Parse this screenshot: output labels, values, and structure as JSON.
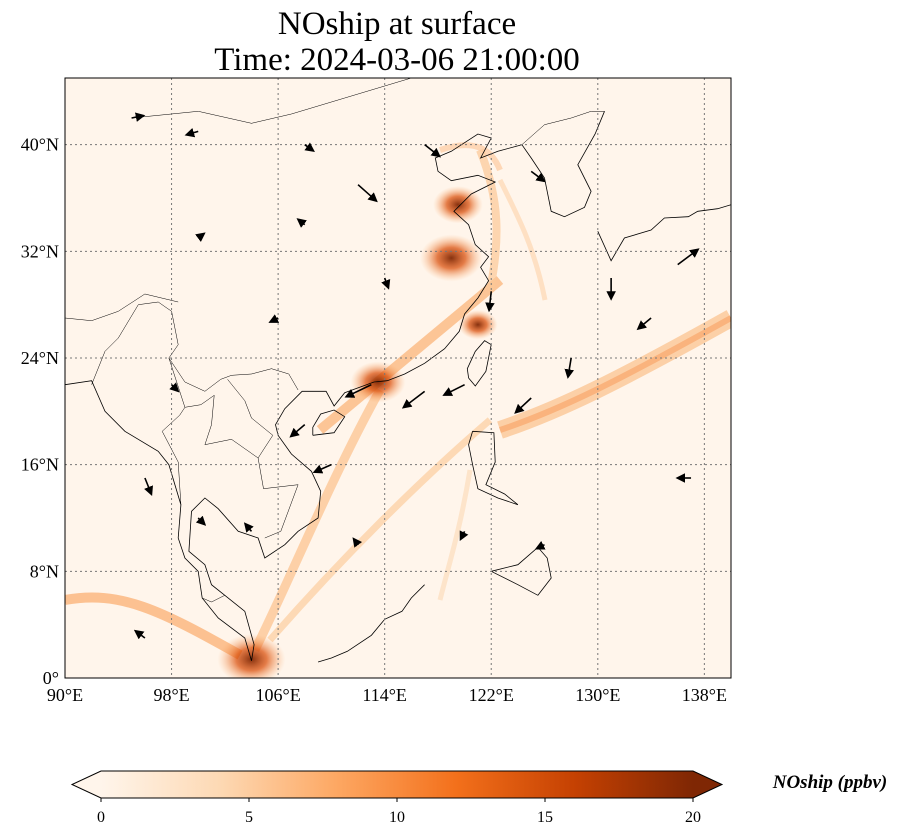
{
  "title": {
    "line1": "NOship at surface",
    "line2": "Time: 2024-03-06 21:00:00"
  },
  "map": {
    "extent": {
      "lon": [
        90,
        140
      ],
      "lat": [
        0,
        45
      ]
    },
    "lon_ticks": [
      {
        "value": 90,
        "label": "90°E"
      },
      {
        "value": 98,
        "label": "98°E"
      },
      {
        "value": 106,
        "label": "106°E"
      },
      {
        "value": 114,
        "label": "114°E"
      },
      {
        "value": 122,
        "label": "122°E"
      },
      {
        "value": 130,
        "label": "130°E"
      },
      {
        "value": 138,
        "label": "138°E"
      }
    ],
    "lat_ticks": [
      {
        "value": 0,
        "label": "0°"
      },
      {
        "value": 8,
        "label": "8°N"
      },
      {
        "value": 16,
        "label": "16°N"
      },
      {
        "value": 24,
        "label": "24°N"
      },
      {
        "value": 32,
        "label": "32°N"
      },
      {
        "value": 40,
        "label": "40°N"
      }
    ],
    "gridlines": true,
    "background_color": "#fff5eb",
    "hotspots": [
      {
        "name": "yangtze-delta",
        "lon": 119,
        "lat": 31.5,
        "level": 18
      },
      {
        "name": "pearl-river-delta",
        "lon": 113.5,
        "lat": 22.2,
        "level": 15
      },
      {
        "name": "strait-of-singapore",
        "lon": 104,
        "lat": 1.4,
        "level": 20
      },
      {
        "name": "shandong",
        "lon": 119.5,
        "lat": 35.5,
        "level": 13
      },
      {
        "name": "taiwan-strait",
        "lon": 121,
        "lat": 26.5,
        "level": 9
      }
    ],
    "wind_vectors": [
      {
        "lon": 95,
        "lat": 42,
        "u": 1,
        "v": 0.2
      },
      {
        "lon": 100,
        "lat": 41,
        "u": -1,
        "v": -0.3
      },
      {
        "lon": 108,
        "lat": 40,
        "u": 0.7,
        "v": -0.5
      },
      {
        "lon": 112,
        "lat": 37,
        "u": 1.8,
        "v": -1.6
      },
      {
        "lon": 117,
        "lat": 40,
        "u": 1.4,
        "v": -1.1
      },
      {
        "lon": 125,
        "lat": 38,
        "u": 1.2,
        "v": -0.9
      },
      {
        "lon": 131,
        "lat": 30,
        "u": 0,
        "v": -2
      },
      {
        "lon": 134,
        "lat": 27,
        "u": -1.2,
        "v": -1
      },
      {
        "lon": 136,
        "lat": 31,
        "u": 2,
        "v": 1.5
      },
      {
        "lon": 128,
        "lat": 24,
        "u": -0.3,
        "v": -1.8
      },
      {
        "lon": 125,
        "lat": 21,
        "u": -1.5,
        "v": -1.4
      },
      {
        "lon": 120,
        "lat": 22,
        "u": -2,
        "v": -1
      },
      {
        "lon": 117,
        "lat": 21.5,
        "u": -2.1,
        "v": -1.6
      },
      {
        "lon": 113,
        "lat": 22,
        "u": -2.5,
        "v": -1.2
      },
      {
        "lon": 108,
        "lat": 19,
        "u": -1.3,
        "v": -1.1
      },
      {
        "lon": 110,
        "lat": 16,
        "u": -1.6,
        "v": -0.7
      },
      {
        "lon": 96,
        "lat": 15,
        "u": 0.6,
        "v": -1.5
      },
      {
        "lon": 100,
        "lat": 12,
        "u": 0.5,
        "v": -0.5
      },
      {
        "lon": 104,
        "lat": 11,
        "u": -0.5,
        "v": 0.6
      },
      {
        "lon": 112,
        "lat": 10,
        "u": -0.3,
        "v": 0.4
      },
      {
        "lon": 120,
        "lat": 11,
        "u": -0.3,
        "v": -0.6
      },
      {
        "lon": 126,
        "lat": 10,
        "u": -0.6,
        "v": -0.3
      },
      {
        "lon": 137,
        "lat": 15,
        "u": -1.2,
        "v": 0
      },
      {
        "lon": 96,
        "lat": 3,
        "u": -0.8,
        "v": 0.6
      },
      {
        "lon": 106,
        "lat": 27,
        "u": -0.6,
        "v": -0.3
      },
      {
        "lon": 114,
        "lat": 30,
        "u": 0.3,
        "v": -0.8
      },
      {
        "lon": 100,
        "lat": 33,
        "u": 0.4,
        "v": 0.3
      },
      {
        "lon": 122,
        "lat": 29,
        "u": -0.2,
        "v": -1.8
      },
      {
        "lon": 98,
        "lat": 22,
        "u": 0.5,
        "v": -0.5
      },
      {
        "lon": 108,
        "lat": 34,
        "u": -0.5,
        "v": 0.4
      }
    ],
    "coastlines": [
      [
        [
          104,
          1.3
        ],
        [
          103.5,
          3
        ],
        [
          101.5,
          4.5
        ],
        [
          100.3,
          6
        ],
        [
          100,
          8
        ],
        [
          99,
          9
        ],
        [
          98.5,
          10.5
        ],
        [
          98.7,
          13
        ],
        [
          97.8,
          16
        ],
        [
          97,
          17
        ],
        [
          94.5,
          18.5
        ],
        [
          93,
          20
        ],
        [
          92,
          22.3
        ],
        [
          90,
          22
        ]
      ],
      [
        [
          104,
          1.3
        ],
        [
          104.2,
          2.5
        ],
        [
          103.5,
          5
        ],
        [
          102,
          6.2
        ],
        [
          101,
          7
        ],
        [
          100.5,
          8.5
        ],
        [
          99.3,
          9.5
        ],
        [
          99.5,
          12.5
        ],
        [
          100.5,
          13.5
        ],
        [
          101.5,
          12.7
        ],
        [
          103,
          11
        ],
        [
          104.5,
          10.5
        ],
        [
          105,
          9
        ],
        [
          106.5,
          10
        ],
        [
          107.5,
          11
        ],
        [
          109,
          12
        ],
        [
          109.2,
          14
        ],
        [
          108.5,
          15.5
        ],
        [
          107,
          16.8
        ],
        [
          106,
          18.2
        ],
        [
          105.8,
          19
        ],
        [
          106.5,
          20.2
        ],
        [
          107.8,
          21.5
        ],
        [
          109.6,
          21.5
        ],
        [
          110.2,
          20.4
        ],
        [
          111,
          21.4
        ],
        [
          113.2,
          22.2
        ],
        [
          114.2,
          22.3
        ],
        [
          115.5,
          22.8
        ],
        [
          117,
          23.6
        ],
        [
          118.5,
          24.7
        ],
        [
          119.6,
          26
        ],
        [
          120,
          27.3
        ],
        [
          121,
          28.5
        ],
        [
          121.8,
          29.8
        ],
        [
          121.2,
          30.8
        ],
        [
          121.8,
          31.6
        ],
        [
          120.8,
          32.5
        ],
        [
          120.3,
          34
        ],
        [
          119.2,
          35
        ],
        [
          120.5,
          36.3
        ],
        [
          122.3,
          37.2
        ],
        [
          121,
          37.7
        ],
        [
          119,
          37.3
        ],
        [
          118,
          38
        ],
        [
          117.8,
          39
        ],
        [
          119,
          39.5
        ],
        [
          121,
          40.8
        ],
        [
          122,
          40.5
        ],
        [
          121.2,
          39
        ],
        [
          122.5,
          39.5
        ],
        [
          124.3,
          40
        ]
      ],
      [
        [
          124.3,
          40
        ],
        [
          125,
          39
        ],
        [
          126,
          37.5
        ],
        [
          126.5,
          35
        ],
        [
          127.5,
          34.6
        ],
        [
          129,
          35.3
        ],
        [
          129.5,
          36.5
        ],
        [
          128.5,
          38.5
        ],
        [
          129.8,
          40.8
        ],
        [
          130.5,
          42.5
        ]
      ],
      [
        [
          120.3,
          22.5
        ],
        [
          120.8,
          21.9
        ],
        [
          121.6,
          23
        ],
        [
          122,
          25
        ],
        [
          121.5,
          25.3
        ],
        [
          120.8,
          24.5
        ],
        [
          120.2,
          23.2
        ],
        [
          120.3,
          22.5
        ]
      ],
      [
        [
          108.6,
          18.2
        ],
        [
          110.2,
          18.4
        ],
        [
          111,
          19.6
        ],
        [
          110.2,
          20.1
        ],
        [
          109.2,
          19.8
        ],
        [
          108.6,
          18.8
        ],
        [
          108.6,
          18.2
        ]
      ],
      [
        [
          120.6,
          18.5
        ],
        [
          122.2,
          18.4
        ],
        [
          122.3,
          16.2
        ],
        [
          121.6,
          14.5
        ],
        [
          123,
          13.8
        ],
        [
          124,
          13
        ],
        [
          122.5,
          13.5
        ],
        [
          121,
          14.2
        ],
        [
          120.6,
          16
        ],
        [
          120.3,
          17.5
        ],
        [
          120.6,
          18.5
        ]
      ],
      [
        [
          122,
          8
        ],
        [
          124,
          7
        ],
        [
          125.5,
          6.2
        ],
        [
          126.5,
          7.5
        ],
        [
          126.2,
          9
        ],
        [
          125.5,
          9.8
        ],
        [
          124,
          8.5
        ],
        [
          122,
          8
        ]
      ],
      [
        [
          130,
          33.5
        ],
        [
          131,
          31.3
        ],
        [
          132,
          33
        ],
        [
          134,
          33.6
        ],
        [
          135,
          34.5
        ],
        [
          136.8,
          34.6
        ],
        [
          137.5,
          35
        ],
        [
          139,
          35.2
        ],
        [
          140,
          35.5
        ]
      ],
      [
        [
          117,
          7
        ],
        [
          116,
          6
        ],
        [
          115.3,
          5
        ],
        [
          114,
          4.4
        ],
        [
          113,
          3.2
        ],
        [
          111.2,
          2
        ],
        [
          110,
          1.5
        ],
        [
          109,
          1.2
        ]
      ]
    ],
    "borders": [
      [
        [
          92,
          22
        ],
        [
          93,
          24.5
        ],
        [
          94,
          25.5
        ],
        [
          95.5,
          28
        ],
        [
          97,
          28.2
        ],
        [
          98,
          27.5
        ],
        [
          98.5,
          25
        ],
        [
          97.8,
          24
        ],
        [
          99,
          22.2
        ],
        [
          100.5,
          21.5
        ],
        [
          101.7,
          22.4
        ],
        [
          102.5,
          22.7
        ],
        [
          104,
          22.8
        ],
        [
          105.5,
          23.2
        ],
        [
          106.8,
          22.8
        ],
        [
          107.5,
          21.6
        ]
      ],
      [
        [
          97.8,
          24
        ],
        [
          99,
          20.3
        ],
        [
          100.2,
          20.5
        ],
        [
          101.2,
          21.2
        ],
        [
          101,
          19
        ],
        [
          100.5,
          17.5
        ],
        [
          102.5,
          17.9
        ],
        [
          104.5,
          16.5
        ],
        [
          104.9,
          14.2
        ],
        [
          107.5,
          14.5
        ],
        [
          106.2,
          11
        ],
        [
          105,
          10.5
        ]
      ],
      [
        [
          99,
          20.3
        ],
        [
          98.6,
          19.7
        ],
        [
          97.3,
          18.5
        ],
        [
          98.5,
          16.2
        ],
        [
          98.7,
          13
        ]
      ],
      [
        [
          104.5,
          16.5
        ],
        [
          105.6,
          18.2
        ],
        [
          104,
          19.5
        ],
        [
          103.5,
          20.8
        ],
        [
          102.2,
          22.4
        ]
      ],
      [
        [
          90,
          27
        ],
        [
          92,
          26.8
        ],
        [
          94,
          27.5
        ],
        [
          96,
          28.8
        ],
        [
          98.5,
          28.2
        ]
      ],
      [
        [
          95,
          42
        ],
        [
          100,
          42.5
        ],
        [
          104,
          41.6
        ],
        [
          107,
          42.3
        ],
        [
          111,
          43.5
        ],
        [
          116,
          45
        ]
      ],
      [
        [
          124.3,
          40
        ],
        [
          126,
          41.5
        ],
        [
          128,
          42
        ],
        [
          129.5,
          42.5
        ],
        [
          130.5,
          42.5
        ]
      ],
      [
        [
          100.3,
          6
        ],
        [
          101,
          5.7
        ],
        [
          102,
          6.2
        ]
      ]
    ]
  },
  "colorbar": {
    "label": "NOship (ppbv)",
    "min": 0,
    "max": 20,
    "ticks": [
      0,
      5,
      10,
      15,
      20
    ],
    "colors": [
      "#fff5eb",
      "#fdd9b4",
      "#fda762",
      "#f3701b",
      "#c54102",
      "#7f2704"
    ],
    "extend": "both"
  }
}
